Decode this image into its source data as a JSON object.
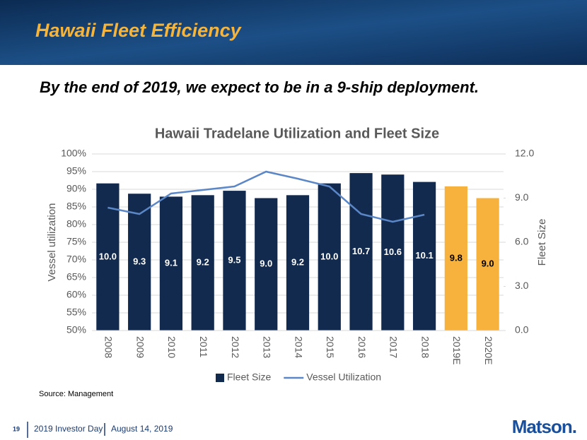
{
  "header": {
    "title": "Hawaii Fleet Efficiency",
    "subtitle": "By the end of 2019, we expect to be in a 9-ship deployment."
  },
  "chart_data": {
    "type": "bar-line",
    "title": "Hawaii Tradelane Utilization and Fleet Size",
    "y_label": "Vessel utilization",
    "y2_label": "Fleet Size",
    "categories": [
      "2008",
      "2009",
      "2010",
      "2011",
      "2012",
      "2013",
      "2014",
      "2015",
      "2016",
      "2017",
      "2018",
      "2019E",
      "2020E"
    ],
    "series": [
      {
        "name": "Fleet Size",
        "type": "bar",
        "axis": "y2",
        "color": "#132a4f",
        "colors": [
          "#132a4f",
          "#132a4f",
          "#132a4f",
          "#132a4f",
          "#132a4f",
          "#132a4f",
          "#132a4f",
          "#132a4f",
          "#132a4f",
          "#132a4f",
          "#132a4f",
          "#f7b23e",
          "#f7b23e"
        ],
        "label_colors": [
          "#ffffff",
          "#ffffff",
          "#ffffff",
          "#ffffff",
          "#ffffff",
          "#ffffff",
          "#ffffff",
          "#ffffff",
          "#ffffff",
          "#ffffff",
          "#ffffff",
          "#000000",
          "#000000"
        ],
        "values": [
          10.0,
          9.3,
          9.1,
          9.2,
          9.5,
          9.0,
          9.2,
          10.0,
          10.7,
          10.6,
          10.1,
          9.8,
          9.0
        ],
        "value_labels": [
          "10.0",
          "9.3",
          "9.1",
          "9.2",
          "9.5",
          "9.0",
          "9.2",
          "10.0",
          "10.7",
          "10.6",
          "10.1",
          "9.8",
          "9.0"
        ]
      },
      {
        "name": "Vessel Utilization",
        "type": "line",
        "axis": "y",
        "color": "#5b87c6",
        "values": [
          84.8,
          83.0,
          88.8,
          89.8,
          90.8,
          95.0,
          93.0,
          90.8,
          83.0,
          80.8,
          82.8,
          null,
          null
        ]
      }
    ],
    "ylim": [
      50,
      100
    ],
    "yticks": [
      {
        "value": 50,
        "label": "50%"
      },
      {
        "value": 55,
        "label": "55%"
      },
      {
        "value": 60,
        "label": "60%"
      },
      {
        "value": 65,
        "label": "65%"
      },
      {
        "value": 70,
        "label": "70%"
      },
      {
        "value": 75,
        "label": "75%"
      },
      {
        "value": 80,
        "label": "80%"
      },
      {
        "value": 85,
        "label": "85%"
      },
      {
        "value": 90,
        "label": "90%"
      },
      {
        "value": 95,
        "label": "95%"
      },
      {
        "value": 100,
        "label": "100%"
      }
    ],
    "y2lim": [
      0,
      12
    ],
    "y2ticks": [
      {
        "value": 0,
        "label": "0.0"
      },
      {
        "value": 3,
        "label": "3.0"
      },
      {
        "value": 6,
        "label": "6.0"
      },
      {
        "value": 9,
        "label": "9.0"
      },
      {
        "value": 12,
        "label": "12.0"
      }
    ],
    "grid": true,
    "legend": "bottom"
  },
  "source": "Source: Management",
  "footer": {
    "page": "19",
    "event": "2019 Investor Day",
    "date": "August 14, 2019",
    "logo": "Matson."
  }
}
